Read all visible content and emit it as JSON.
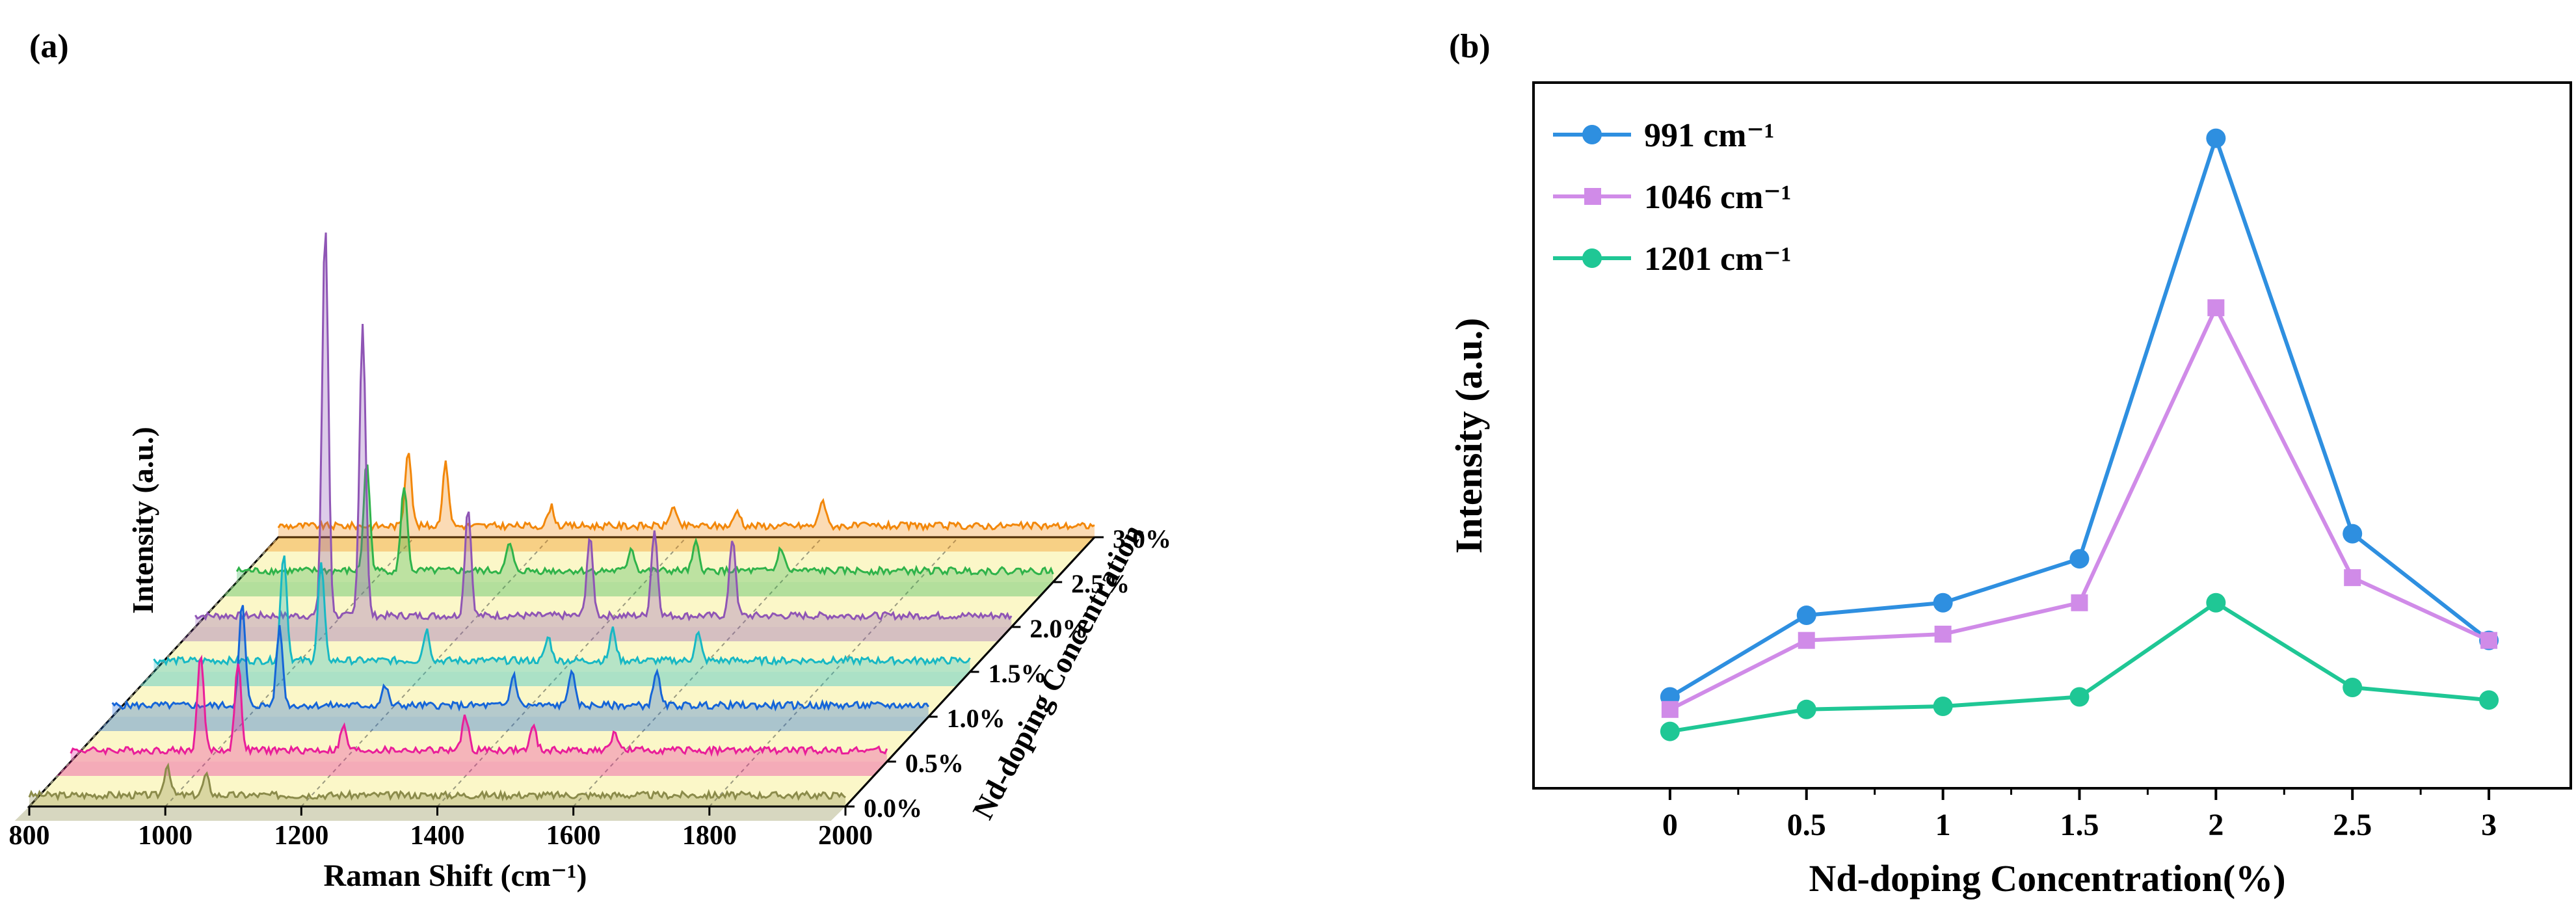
{
  "panel_a": {
    "label": "(a)",
    "chart_data": {
      "type": "line",
      "subtype": "3d-waterfall",
      "title": "",
      "xlabel": "Raman Shift (cm⁻¹)",
      "ylabel": "Intensity (a.u.)",
      "zlabel": "Nd-doping Concentration",
      "xlim": [
        800,
        2000
      ],
      "xticks": [
        "800",
        "1000",
        "1200",
        "1400",
        "1600",
        "1800",
        "2000"
      ],
      "zticks": [
        "0.0%",
        "0.5%",
        "1.0%",
        "1.5%",
        "2.0%",
        "2.5%",
        "3.0%"
      ],
      "series": [
        {
          "name": "0.0%",
          "color": "#8b8b4a",
          "peaks": [
            [
              1003,
              0.08
            ],
            [
              1060,
              0.05
            ]
          ]
        },
        {
          "name": "0.5%",
          "color": "#e91e9a",
          "peaks": [
            [
              991,
              0.25
            ],
            [
              1046,
              0.23
            ],
            [
              1201,
              0.06
            ],
            [
              1380,
              0.09
            ],
            [
              1480,
              0.06
            ],
            [
              1600,
              0.05
            ]
          ]
        },
        {
          "name": "1.0%",
          "color": "#1565d8",
          "peaks": [
            [
              991,
              0.26
            ],
            [
              1046,
              0.2
            ],
            [
              1201,
              0.05
            ],
            [
              1390,
              0.08
            ],
            [
              1475,
              0.09
            ],
            [
              1600,
              0.09
            ]
          ]
        },
        {
          "name": "1.5%",
          "color": "#17b8c4",
          "peaks": [
            [
              991,
              0.28
            ],
            [
              1046,
              0.25
            ],
            [
              1201,
              0.08
            ],
            [
              1380,
              0.06
            ],
            [
              1475,
              0.08
            ],
            [
              1600,
              0.07
            ]
          ]
        },
        {
          "name": "2.0%",
          "color": "#8f55b5",
          "peaks": [
            [
              991,
              1.0
            ],
            [
              1046,
              0.75
            ],
            [
              1201,
              0.28
            ],
            [
              1380,
              0.2
            ],
            [
              1475,
              0.22
            ],
            [
              1590,
              0.2
            ]
          ]
        },
        {
          "name": "2.5%",
          "color": "#2fb34a",
          "peaks": [
            [
              991,
              0.28
            ],
            [
              1046,
              0.22
            ],
            [
              1201,
              0.07
            ],
            [
              1380,
              0.06
            ],
            [
              1475,
              0.07
            ],
            [
              1600,
              0.06
            ]
          ]
        },
        {
          "name": "3.0%",
          "color": "#f2870a",
          "peaks": [
            [
              991,
              0.2
            ],
            [
              1046,
              0.16
            ],
            [
              1201,
              0.05
            ],
            [
              1380,
              0.05
            ],
            [
              1475,
              0.04
            ],
            [
              1600,
              0.07
            ]
          ]
        }
      ]
    }
  },
  "panel_b": {
    "label": "(b)",
    "chart_data": {
      "type": "line",
      "title": "",
      "xlabel": "Nd-doping Concentration(%)",
      "ylabel": "Intensity (a.u.)",
      "x": [
        0,
        0.5,
        1,
        1.5,
        2,
        2.5,
        3
      ],
      "xticks": [
        "0",
        "0.5",
        "1",
        "1.5",
        "2",
        "2.5",
        "3"
      ],
      "xlim": [
        -0.5,
        3.3
      ],
      "ylim": [
        0,
        1.0
      ],
      "legend_position": "top-left",
      "series": [
        {
          "name": "991 cm⁻¹",
          "color": "#2e8fe0",
          "marker": "circle",
          "values": [
            0.1,
            0.23,
            0.25,
            0.32,
            0.99,
            0.36,
            0.19
          ]
        },
        {
          "name": "1046 cm⁻¹",
          "color": "#d08be8",
          "marker": "square",
          "values": [
            0.08,
            0.19,
            0.2,
            0.25,
            0.72,
            0.29,
            0.19
          ]
        },
        {
          "name": "1201 cm⁻¹",
          "color": "#1fc795",
          "marker": "circle",
          "values": [
            0.045,
            0.08,
            0.085,
            0.1,
            0.25,
            0.115,
            0.095
          ]
        }
      ]
    }
  }
}
